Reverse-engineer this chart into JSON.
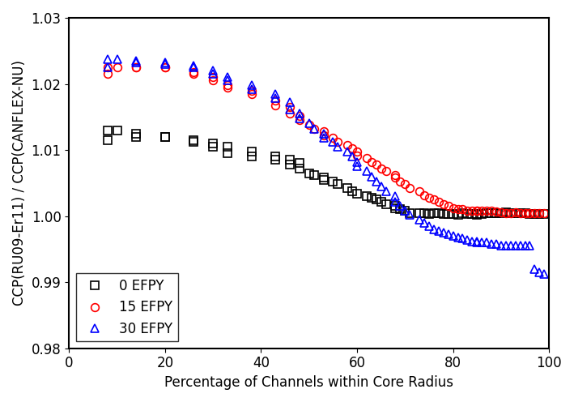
{
  "title": "",
  "xlabel": "Percentage of Channels within Core Radius",
  "ylabel": "CCP(RU09-Er11) / CCP(CANFLEX-NU)",
  "xlim": [
    0,
    100
  ],
  "ylim": [
    0.98,
    1.03
  ],
  "yticks": [
    0.98,
    0.99,
    1.0,
    1.01,
    1.02,
    1.03
  ],
  "xticks": [
    0,
    20,
    40,
    60,
    80,
    100
  ],
  "series": [
    {
      "label": "0 EFPY",
      "color": "black",
      "marker": "s",
      "x": [
        8,
        8,
        10,
        14,
        14,
        20,
        20,
        26,
        26,
        30,
        30,
        33,
        33,
        38,
        38,
        43,
        43,
        46,
        46,
        48,
        48,
        50,
        51,
        53,
        53,
        55,
        56,
        58,
        59,
        60,
        62,
        63,
        64,
        65,
        66,
        68,
        68,
        69,
        70,
        71,
        73,
        74,
        75,
        76,
        77,
        78,
        79,
        80,
        81,
        82,
        83,
        84,
        85,
        85,
        86,
        87,
        88,
        89,
        90,
        91,
        92,
        93,
        94,
        95,
        96,
        97,
        98,
        99
      ],
      "y": [
        1.0115,
        1.013,
        1.013,
        1.0125,
        1.012,
        1.012,
        1.012,
        1.0115,
        1.0112,
        1.011,
        1.0105,
        1.0105,
        1.0095,
        1.0098,
        1.009,
        1.009,
        1.0085,
        1.0085,
        1.0078,
        1.008,
        1.0072,
        1.0065,
        1.0062,
        1.0058,
        1.0055,
        1.0052,
        1.0048,
        1.0042,
        1.0038,
        1.0034,
        1.003,
        1.0028,
        1.0025,
        1.0022,
        1.0018,
        1.0015,
        1.0012,
        1.001,
        1.0008,
        1.0005,
        1.0005,
        1.0004,
        1.0003,
        1.0004,
        1.0005,
        1.0003,
        1.0003,
        1.0003,
        1.0002,
        1.0005,
        1.0003,
        1.0003,
        1.0003,
        1.0002,
        1.0003,
        1.0005,
        1.0004,
        1.0004,
        1.0005,
        1.0006,
        1.0005,
        1.0005,
        1.0004,
        1.0005,
        1.0003,
        1.0003,
        1.0003,
        1.0003
      ]
    },
    {
      "label": "15 EFPY",
      "color": "red",
      "marker": "o",
      "x": [
        8,
        8,
        10,
        14,
        14,
        20,
        20,
        26,
        26,
        30,
        30,
        33,
        33,
        38,
        38,
        43,
        43,
        46,
        46,
        48,
        48,
        50,
        51,
        53,
        53,
        55,
        56,
        58,
        59,
        60,
        60,
        62,
        63,
        64,
        65,
        66,
        68,
        68,
        69,
        70,
        71,
        73,
        74,
        75,
        76,
        77,
        78,
        79,
        80,
        81,
        82,
        83,
        84,
        85,
        85,
        86,
        87,
        88,
        89,
        90,
        91,
        92,
        93,
        94,
        95,
        96,
        97,
        98,
        99
      ],
      "y": [
        1.0215,
        1.0225,
        1.0225,
        1.0225,
        1.0225,
        1.0225,
        1.0225,
        1.0218,
        1.0215,
        1.021,
        1.0205,
        1.0198,
        1.0195,
        1.019,
        1.0185,
        1.0175,
        1.0168,
        1.0165,
        1.0155,
        1.0152,
        1.0145,
        1.0138,
        1.0132,
        1.0128,
        1.0122,
        1.0118,
        1.0112,
        1.0108,
        1.0102,
        1.0098,
        1.0092,
        1.0088,
        1.0082,
        1.0078,
        1.0072,
        1.0068,
        1.0062,
        1.0058,
        1.0052,
        1.0048,
        1.0042,
        1.0038,
        1.0032,
        1.0028,
        1.0025,
        1.0022,
        1.0018,
        1.0015,
        1.0012,
        1.001,
        1.001,
        1.0008,
        1.0008,
        1.0008,
        1.0008,
        1.0008,
        1.0008,
        1.0008,
        1.0007,
        1.0006,
        1.0005,
        1.0005,
        1.0006,
        1.0005,
        1.0005,
        1.0005,
        1.0004,
        1.0004,
        1.0004
      ]
    },
    {
      "label": "30 EFPY",
      "color": "blue",
      "marker": "^",
      "x": [
        8,
        8,
        10,
        14,
        14,
        20,
        20,
        26,
        26,
        30,
        30,
        33,
        33,
        38,
        38,
        43,
        43,
        46,
        46,
        48,
        48,
        50,
        51,
        53,
        53,
        55,
        56,
        58,
        59,
        60,
        60,
        62,
        63,
        64,
        65,
        66,
        68,
        68,
        69,
        70,
        71,
        73,
        74,
        75,
        76,
        77,
        78,
        79,
        80,
        81,
        82,
        83,
        84,
        85,
        85,
        86,
        87,
        88,
        89,
        90,
        91,
        92,
        93,
        94,
        95,
        96,
        97,
        98,
        99
      ],
      "y": [
        1.0225,
        1.0238,
        1.0238,
        1.0235,
        1.0232,
        1.0232,
        1.023,
        1.0228,
        1.0225,
        1.022,
        1.0215,
        1.021,
        1.0205,
        1.0198,
        1.0192,
        1.0185,
        1.0178,
        1.0172,
        1.0162,
        1.0155,
        1.0148,
        1.014,
        1.0132,
        1.0125,
        1.0118,
        1.0112,
        1.0105,
        1.0098,
        1.009,
        1.0082,
        1.0075,
        1.0068,
        1.006,
        1.0052,
        1.0045,
        1.0038,
        1.003,
        1.0022,
        1.0015,
        1.0008,
        1.0002,
        0.9995,
        0.999,
        0.9985,
        0.998,
        0.9978,
        0.9975,
        0.9972,
        0.997,
        0.9968,
        0.9966,
        0.9964,
        0.9962,
        0.9962,
        0.996,
        0.996,
        0.996,
        0.9958,
        0.9958,
        0.9956,
        0.9956,
        0.9955,
        0.9956,
        0.9955,
        0.9956,
        0.9955,
        0.992,
        0.9915,
        0.9912
      ]
    }
  ],
  "legend_loc": "lower left",
  "marker_size": 7,
  "marker_facecolor": "none",
  "linewidth": 0,
  "font_size": 12,
  "tick_label_size": 12
}
